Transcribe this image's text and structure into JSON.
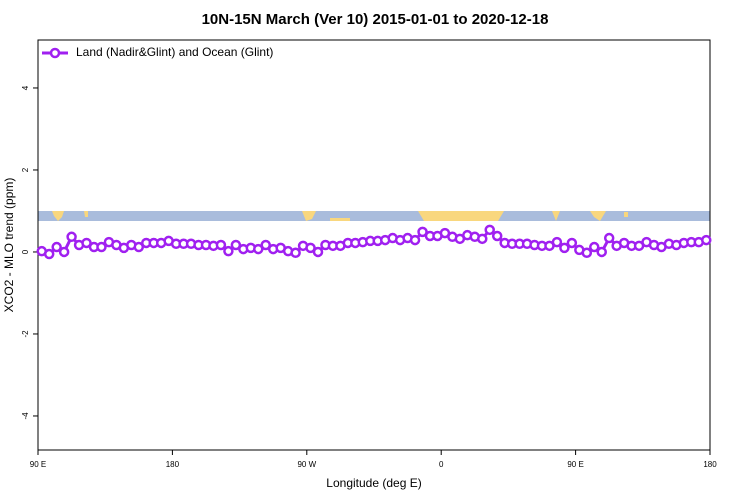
{
  "chart_data": {
    "type": "line",
    "title": "10N-15N March (Ver 10)   2015-01-01 to 2020-12-18",
    "xlabel": "Longitude (deg E)",
    "ylabel": "XCO2 - MLO trend (ppm)",
    "legend": "top-left",
    "xlim": [
      90,
      540
    ],
    "xticks": [
      {
        "value": 90,
        "label": "90 E"
      },
      180,
      {
        "value": 270,
        "label": "90 W"
      },
      {
        "value": 360,
        "label": "0"
      },
      {
        "value": 450,
        "label": "90 E"
      },
      {
        "value": 540,
        "label": "180"
      }
    ],
    "ylim": [
      -4.83,
      5.17
    ],
    "yticks": [
      -4,
      -2,
      0,
      2,
      4
    ],
    "x": [
      92.5,
      97.5,
      102.5,
      107.5,
      112.5,
      117.5,
      122.5,
      127.5,
      132.5,
      137.5,
      142.5,
      147.5,
      152.5,
      157.5,
      162.5,
      167.5,
      172.5,
      177.5,
      182.5,
      187.5,
      192.5,
      197.5,
      202.5,
      207.5,
      212.5,
      217.5,
      222.5,
      227.5,
      232.5,
      237.5,
      242.5,
      247.5,
      252.5,
      257.5,
      262.5,
      267.5,
      272.5,
      277.5,
      282.5,
      287.5,
      292.5,
      297.5,
      302.5,
      307.5,
      312.5,
      317.5,
      322.5,
      327.5,
      332.5,
      337.5,
      342.5,
      347.5,
      352.5,
      357.5,
      362.5,
      367.5,
      372.5,
      377.5,
      382.5,
      387.5,
      392.5,
      397.5,
      402.5,
      407.5,
      412.5,
      417.5,
      422.5,
      427.5,
      432.5,
      437.5,
      442.5,
      447.5,
      452.5,
      457.5,
      462.5,
      467.5,
      472.5,
      477.5,
      482.5,
      487.5,
      492.5,
      497.5,
      502.5,
      507.5,
      512.5,
      517.5,
      522.5,
      527.5,
      532.5,
      537.5
    ],
    "series": [
      {
        "name": "Land (Nadir&Glint) and Ocean (Glint)",
        "color": "#a020f0",
        "values": [
          0.02,
          -0.05,
          0.12,
          0,
          0.37,
          0.17,
          0.22,
          0.12,
          0.12,
          0.24,
          0.17,
          0.1,
          0.17,
          0.12,
          0.22,
          0.22,
          0.22,
          0.27,
          0.2,
          0.2,
          0.2,
          0.17,
          0.17,
          0.15,
          0.17,
          0.02,
          0.17,
          0.07,
          0.1,
          0.07,
          0.17,
          0.07,
          0.1,
          0.02,
          -0.02,
          0.15,
          0.1,
          0,
          0.17,
          0.15,
          0.15,
          0.22,
          0.22,
          0.24,
          0.27,
          0.27,
          0.29,
          0.34,
          0.29,
          0.34,
          0.29,
          0.49,
          0.39,
          0.39,
          0.46,
          0.37,
          0.32,
          0.41,
          0.37,
          0.32,
          0.54,
          0.39,
          0.22,
          0.2,
          0.2,
          0.2,
          0.17,
          0.15,
          0.15,
          0.24,
          0.1,
          0.22,
          0.05,
          -0.02,
          0.12,
          0,
          0.34,
          0.15,
          0.22,
          0.15,
          0.15,
          0.24,
          0.17,
          0.12,
          0.2,
          0.17,
          0.22,
          0.24,
          0.24,
          0.29
        ]
      }
    ]
  }
}
